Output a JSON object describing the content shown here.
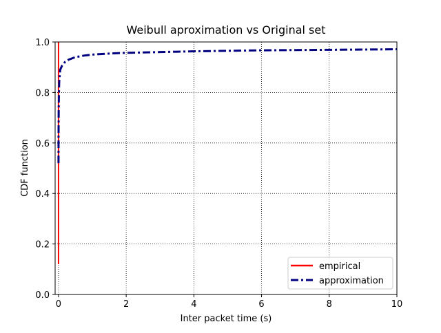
{
  "chart_data": {
    "type": "line",
    "title": "Weibull aproximation vs Original set",
    "xlabel": "Inter packet time (s)",
    "ylabel": "CDF function",
    "xlim": [
      -0.1,
      10
    ],
    "ylim": [
      0,
      1.0
    ],
    "xticks": [
      0,
      2,
      4,
      6,
      8,
      10
    ],
    "yticks": [
      0.0,
      0.2,
      0.4,
      0.6,
      0.8,
      1.0
    ],
    "xtick_labels": [
      "0",
      "2",
      "4",
      "6",
      "8",
      "10"
    ],
    "ytick_labels": [
      "0.0",
      "0.2",
      "0.4",
      "0.6",
      "0.8",
      "1.0"
    ],
    "grid": true,
    "grid_style": "dotted",
    "legend_position": "lower-right",
    "series": [
      {
        "name": "empirical",
        "color": "#ff0000",
        "line_style": "solid",
        "x": [
          0,
          0
        ],
        "y": [
          0.12,
          1.0
        ]
      },
      {
        "name": "approximation",
        "color": "#000080",
        "line_style": "dash-dot",
        "x": [
          0,
          0.001,
          0.005,
          0.01,
          0.02,
          0.05,
          0.1,
          0.2,
          0.3,
          0.5,
          0.75,
          1,
          1.5,
          2,
          3,
          4,
          5,
          6,
          7,
          8,
          9,
          10
        ],
        "y": [
          0.52,
          0.62,
          0.72,
          0.78,
          0.84,
          0.89,
          0.905,
          0.922,
          0.93,
          0.94,
          0.946,
          0.95,
          0.954,
          0.957,
          0.96,
          0.963,
          0.965,
          0.967,
          0.968,
          0.969,
          0.97,
          0.971
        ]
      }
    ]
  }
}
